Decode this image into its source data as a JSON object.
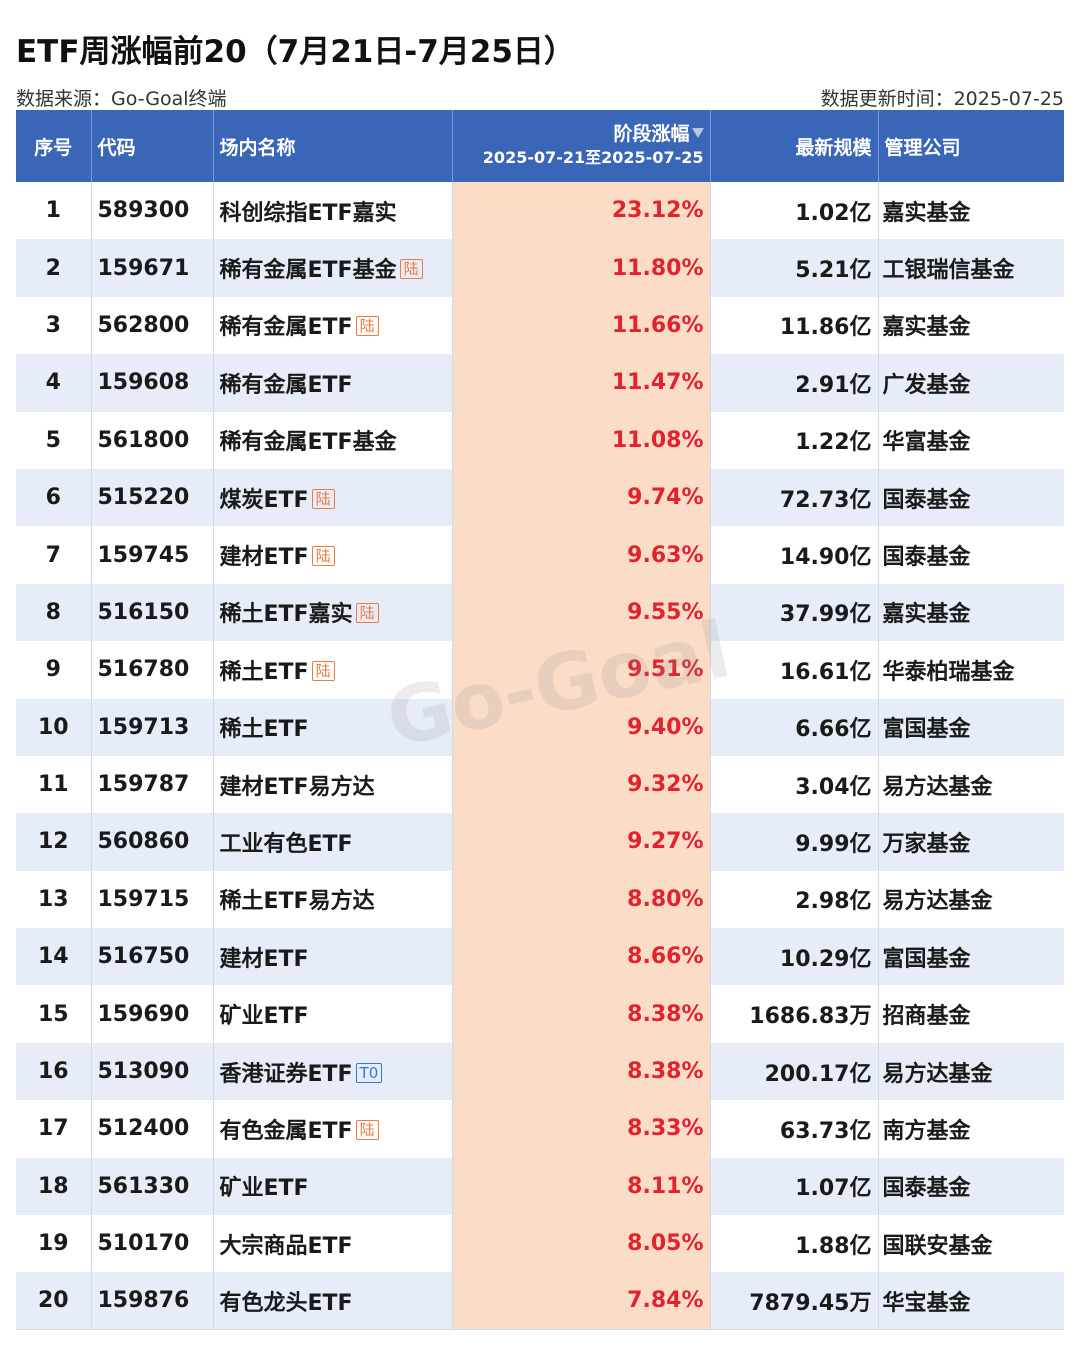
{
  "title": "ETF周涨幅前20（7月21日-7月25日）",
  "source_label": "数据来源：Go-Goal终端",
  "update_label": "数据更新时间：2025-07-25",
  "watermark": "Go-Goal",
  "headers": {
    "rank": "序号",
    "code": "代码",
    "name": "场内名称",
    "change": "阶段涨幅",
    "change_period": "2025-07-21至2025-07-25",
    "scale": "最新规模",
    "manager": "管理公司"
  },
  "colors": {
    "header": "#3a66b7",
    "highlight": "#fbdcc6",
    "positive": "#e2222f",
    "tag": "#ee7a3e",
    "tag_t0": "#2e78d6"
  },
  "rows": [
    {
      "rank": "1",
      "code": "589300",
      "name": "科创综指ETF嘉实",
      "tag": "",
      "change": "23.12%",
      "scale": "1.02亿",
      "manager": "嘉实基金"
    },
    {
      "rank": "2",
      "code": "159671",
      "name": "稀有金属ETF基金",
      "tag": "陆",
      "change": "11.80%",
      "scale": "5.21亿",
      "manager": "工银瑞信基金"
    },
    {
      "rank": "3",
      "code": "562800",
      "name": "稀有金属ETF",
      "tag": "陆",
      "change": "11.66%",
      "scale": "11.86亿",
      "manager": "嘉实基金"
    },
    {
      "rank": "4",
      "code": "159608",
      "name": "稀有金属ETF",
      "tag": "",
      "change": "11.47%",
      "scale": "2.91亿",
      "manager": "广发基金"
    },
    {
      "rank": "5",
      "code": "561800",
      "name": "稀有金属ETF基金",
      "tag": "",
      "change": "11.08%",
      "scale": "1.22亿",
      "manager": "华富基金"
    },
    {
      "rank": "6",
      "code": "515220",
      "name": "煤炭ETF",
      "tag": "陆",
      "change": "9.74%",
      "scale": "72.73亿",
      "manager": "国泰基金"
    },
    {
      "rank": "7",
      "code": "159745",
      "name": "建材ETF",
      "tag": "陆",
      "change": "9.63%",
      "scale": "14.90亿",
      "manager": "国泰基金"
    },
    {
      "rank": "8",
      "code": "516150",
      "name": "稀土ETF嘉实",
      "tag": "陆",
      "change": "9.55%",
      "scale": "37.99亿",
      "manager": "嘉实基金"
    },
    {
      "rank": "9",
      "code": "516780",
      "name": "稀土ETF",
      "tag": "陆",
      "change": "9.51%",
      "scale": "16.61亿",
      "manager": "华泰柏瑞基金"
    },
    {
      "rank": "10",
      "code": "159713",
      "name": "稀土ETF",
      "tag": "",
      "change": "9.40%",
      "scale": "6.66亿",
      "manager": "富国基金"
    },
    {
      "rank": "11",
      "code": "159787",
      "name": "建材ETF易方达",
      "tag": "",
      "change": "9.32%",
      "scale": "3.04亿",
      "manager": "易方达基金"
    },
    {
      "rank": "12",
      "code": "560860",
      "name": "工业有色ETF",
      "tag": "",
      "change": "9.27%",
      "scale": "9.99亿",
      "manager": "万家基金"
    },
    {
      "rank": "13",
      "code": "159715",
      "name": "稀土ETF易方达",
      "tag": "",
      "change": "8.80%",
      "scale": "2.98亿",
      "manager": "易方达基金"
    },
    {
      "rank": "14",
      "code": "516750",
      "name": "建材ETF",
      "tag": "",
      "change": "8.66%",
      "scale": "10.29亿",
      "manager": "富国基金"
    },
    {
      "rank": "15",
      "code": "159690",
      "name": "矿业ETF",
      "tag": "",
      "change": "8.38%",
      "scale": "1686.83万",
      "manager": "招商基金"
    },
    {
      "rank": "16",
      "code": "513090",
      "name": "香港证券ETF",
      "tag": "T0",
      "change": "8.38%",
      "scale": "200.17亿",
      "manager": "易方达基金"
    },
    {
      "rank": "17",
      "code": "512400",
      "name": "有色金属ETF",
      "tag": "陆",
      "change": "8.33%",
      "scale": "63.73亿",
      "manager": "南方基金"
    },
    {
      "rank": "18",
      "code": "561330",
      "name": "矿业ETF",
      "tag": "",
      "change": "8.11%",
      "scale": "1.07亿",
      "manager": "国泰基金"
    },
    {
      "rank": "19",
      "code": "510170",
      "name": "大宗商品ETF",
      "tag": "",
      "change": "8.05%",
      "scale": "1.88亿",
      "manager": "国联安基金"
    },
    {
      "rank": "20",
      "code": "159876",
      "name": "有色龙头ETF",
      "tag": "",
      "change": "7.84%",
      "scale": "7879.45万",
      "manager": "华宝基金"
    }
  ]
}
